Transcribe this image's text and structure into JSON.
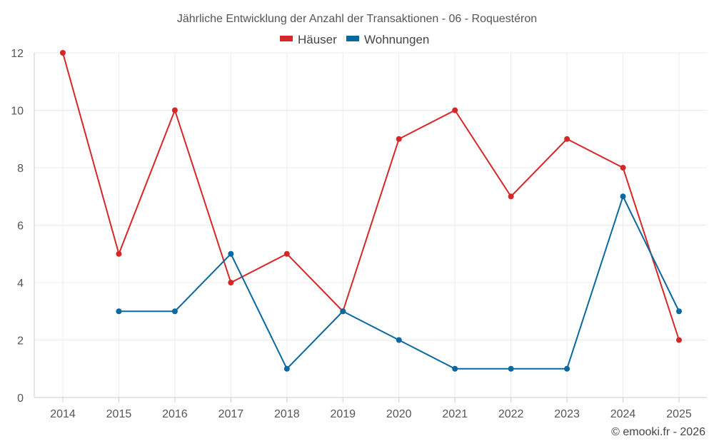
{
  "chart_data": {
    "type": "line",
    "title": "Jährliche Entwicklung der Anzahl der Transaktionen - 06 - Roquestéron",
    "xlabel": "",
    "ylabel": "",
    "categories": [
      "2014",
      "2015",
      "2016",
      "2017",
      "2018",
      "2019",
      "2020",
      "2021",
      "2022",
      "2023",
      "2024",
      "2025"
    ],
    "ylim": [
      0,
      12
    ],
    "yticks": [
      "0",
      "2",
      "4",
      "6",
      "8",
      "10",
      "12"
    ],
    "grid": true,
    "legend_position": "top-center",
    "series": [
      {
        "name": "Häuser",
        "color": "#d62728",
        "values": [
          12,
          5,
          10,
          4,
          5,
          3,
          9,
          10,
          7,
          9,
          8,
          2
        ]
      },
      {
        "name": "Wohnungen",
        "color": "#0868a0",
        "values": [
          null,
          3,
          3,
          5,
          1,
          3,
          2,
          1,
          1,
          1,
          7,
          3
        ]
      }
    ]
  },
  "credit": "© emooki.fr - 2026"
}
